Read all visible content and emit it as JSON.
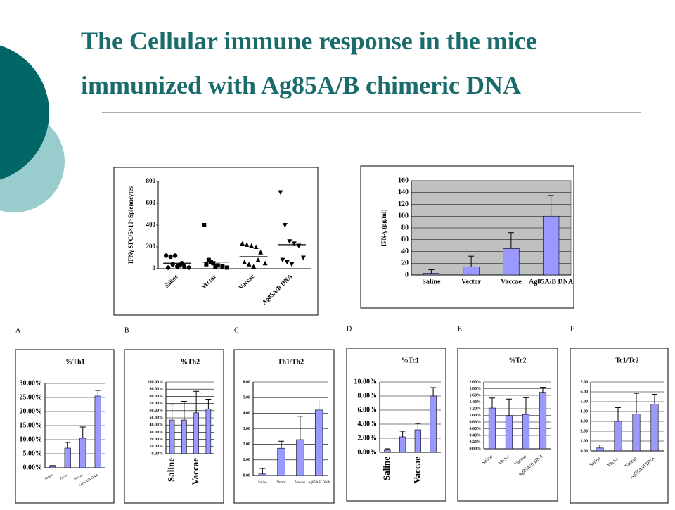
{
  "title": "The Cellular immune response in the mice immunized with Ag85A/B chimeric DNA",
  "panel_labels": [
    "A",
    "B",
    "C",
    "D",
    "E",
    "F"
  ],
  "chart_data": [
    {
      "type": "dotplot",
      "y_label": "IFNγ SFC/5×10⁵ Splenocytes",
      "categories": [
        "Saline",
        "Vector",
        "Vaccae",
        "Ag85A/B DNA"
      ],
      "points": [
        [
          120,
          110,
          120,
          30,
          20,
          10,
          10,
          40,
          20,
          50
        ],
        [
          400,
          80,
          50,
          30,
          20,
          10,
          40,
          60,
          20
        ],
        [
          230,
          220,
          210,
          200,
          150,
          50,
          60,
          40,
          20,
          80
        ],
        [
          700,
          400,
          250,
          230,
          210,
          100,
          80,
          60,
          40
        ]
      ],
      "means": [
        50,
        60,
        110,
        220
      ],
      "markers": [
        "circle",
        "square",
        "triangle-up",
        "triangle-down"
      ],
      "color": "#000000",
      "ylim": [
        0,
        800
      ],
      "yticks": [
        0,
        200,
        400,
        600,
        800
      ]
    },
    {
      "type": "bar",
      "y_label": "IFN-γ (pg/ml)",
      "categories": [
        "Saline",
        "Vector",
        "Vaccae",
        "Ag85A/B DNA"
      ],
      "values": [
        3,
        14,
        45,
        100
      ],
      "errors": [
        6,
        18,
        27,
        35
      ],
      "color": "#9999ff",
      "plot_background": "#c0c0c0",
      "grid": true,
      "ylim": [
        0,
        160
      ],
      "yticks": [
        0,
        20,
        40,
        60,
        80,
        100,
        120,
        140,
        160
      ]
    },
    {
      "type": "bar",
      "title": "%Th1",
      "categories": [
        "Saline",
        "Vector",
        "Vaccae",
        "Ag85A/B DNA"
      ],
      "values": [
        0.5,
        7,
        10.5,
        25.5
      ],
      "errors": [
        0.3,
        2,
        4,
        2
      ],
      "color": "#9999ff",
      "grid": true,
      "ylim": [
        0,
        30
      ],
      "yticks": [
        {
          "value": 0,
          "label": "0.00%"
        },
        {
          "value": 5,
          "label": "5.00%"
        },
        {
          "value": 10,
          "label": "10.00%"
        },
        {
          "value": 15,
          "label": "15.00%"
        },
        {
          "value": 20,
          "label": "20.00%"
        },
        {
          "value": 25,
          "label": "25.00%"
        },
        {
          "value": 30,
          "label": "30.00%"
        }
      ]
    },
    {
      "type": "bar",
      "title": "%Th2",
      "categories": [
        "Saline",
        null,
        "Vaccae",
        null
      ],
      "values": [
        47,
        47,
        57,
        62
      ],
      "errors": [
        22,
        26,
        30,
        14
      ],
      "color": "#9999ff",
      "grid": true,
      "ylim": [
        0,
        100
      ],
      "yticks": [
        {
          "value": 0,
          "label": "0.00%"
        },
        {
          "value": 10,
          "label": "10.00%"
        },
        {
          "value": 20,
          "label": "20.00%"
        },
        {
          "value": 30,
          "label": "30.00%"
        },
        {
          "value": 40,
          "label": "40.00%"
        },
        {
          "value": 50,
          "label": "50.00%"
        },
        {
          "value": 60,
          "label": "60.00%"
        },
        {
          "value": 70,
          "label": "70.00%"
        },
        {
          "value": 80,
          "label": "80.00%"
        },
        {
          "value": 90,
          "label": "90.00%"
        },
        {
          "value": 100,
          "label": "100.00%"
        }
      ]
    },
    {
      "type": "bar",
      "title": "Th1/Th2",
      "categories": [
        "Saline",
        "Vector",
        "Vaccae",
        "Ag85A/B DNA"
      ],
      "values": [
        0.1,
        1.75,
        2.3,
        4.2
      ],
      "errors": [
        0.35,
        0.45,
        1.5,
        0.65
      ],
      "color": "#9999ff",
      "grid": true,
      "ylim": [
        0,
        6
      ],
      "yticks": [
        {
          "value": 0,
          "label": "0.00"
        },
        {
          "value": 1,
          "label": "1.00"
        },
        {
          "value": 2,
          "label": "2.00"
        },
        {
          "value": 3,
          "label": "3.00"
        },
        {
          "value": 4,
          "label": "4.00"
        },
        {
          "value": 5,
          "label": "5.00"
        },
        {
          "value": 6,
          "label": "6.00"
        }
      ]
    },
    {
      "type": "bar",
      "title": "%Tc1",
      "categories": [
        "Saline",
        null,
        "Vaccae",
        null
      ],
      "values": [
        0.4,
        2.2,
        3.2,
        8.0
      ],
      "errors": [
        0.1,
        0.8,
        0.9,
        1.2
      ],
      "color": "#9999ff",
      "grid": true,
      "ylim": [
        0,
        10
      ],
      "yticks": [
        {
          "value": 0,
          "label": "0.00%"
        },
        {
          "value": 2,
          "label": "2.00%"
        },
        {
          "value": 4,
          "label": "4.00%"
        },
        {
          "value": 6,
          "label": "6.00%"
        },
        {
          "value": 8,
          "label": "8.00%"
        },
        {
          "value": 10,
          "label": "10.00%"
        }
      ]
    },
    {
      "type": "bar",
      "title": "%Tc2",
      "categories": [
        "Saline",
        "Vector",
        "Vaccae",
        "Ag85A/B DNA"
      ],
      "values": [
        1.22,
        0.99,
        1.03,
        1.69
      ],
      "errors": [
        0.3,
        0.5,
        0.5,
        0.15
      ],
      "color": "#9999ff",
      "grid": true,
      "ylim": [
        0,
        2
      ],
      "yticks": [
        {
          "value": 0,
          "label": "0.00%"
        },
        {
          "value": 0.2,
          "label": "0.20%"
        },
        {
          "value": 0.4,
          "label": "0.40%"
        },
        {
          "value": 0.6,
          "label": "0.60%"
        },
        {
          "value": 0.8,
          "label": "0.80%"
        },
        {
          "value": 1.0,
          "label": "1.00%"
        },
        {
          "value": 1.2,
          "label": "1.20%"
        },
        {
          "value": 1.4,
          "label": "1.40%"
        },
        {
          "value": 1.6,
          "label": "1.60%"
        },
        {
          "value": 1.8,
          "label": "1.80%"
        },
        {
          "value": 2.0,
          "label": "2.00%"
        }
      ]
    },
    {
      "type": "bar",
      "title": "Tc1/Tc2",
      "categories": [
        "Saline",
        "Vector",
        "Vaccae",
        "Ag85A/B DNA"
      ],
      "values": [
        0.3,
        3.0,
        3.75,
        4.75
      ],
      "errors": [
        0.3,
        1.4,
        2.1,
        1.0
      ],
      "color": "#9999ff",
      "grid": true,
      "ylim": [
        0,
        7
      ],
      "yticks": [
        {
          "value": 0,
          "label": "0.00"
        },
        {
          "value": 1,
          "label": "1.00"
        },
        {
          "value": 2,
          "label": "2.00"
        },
        {
          "value": 3,
          "label": "3.00"
        },
        {
          "value": 4,
          "label": "4.00"
        },
        {
          "value": 5,
          "label": "5.00"
        },
        {
          "value": 6,
          "label": "6.00"
        },
        {
          "value": 7,
          "label": "7.00"
        }
      ]
    }
  ]
}
